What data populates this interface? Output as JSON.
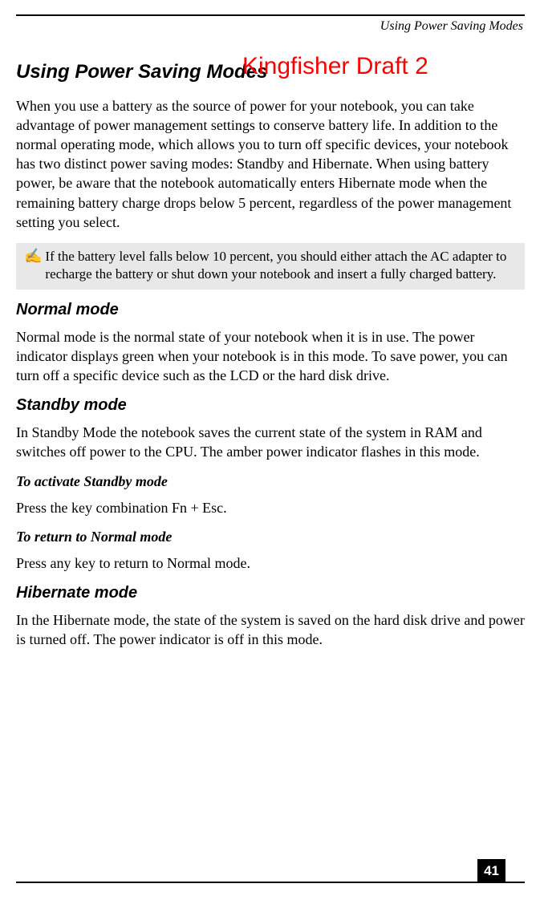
{
  "running_head": "Using Power Saving Modes",
  "page_title": "Using Power Saving Modes",
  "watermark": "Kingfisher Draft 2",
  "intro": "When you use a battery as the source of power for your notebook, you can take advantage of power management settings to conserve battery life. In addition to the normal operating mode, which allows you to turn off specific devices, your notebook has two distinct power saving modes: Standby and Hibernate. When using battery power, be aware that the notebook automatically enters Hibernate mode when the remaining battery charge drops below 5 percent, regardless of the power management setting you select.",
  "note_icon": "✍",
  "note": "If the battery level falls below 10 percent, you should either attach the AC adapter to recharge the battery or shut down your notebook and insert a fully charged battery.",
  "sections": {
    "normal": {
      "heading": "Normal mode",
      "text": "Normal mode is the normal state of your notebook when it is in use. The power indicator displays green when your notebook is in this mode. To save power, you can turn off a specific device such as the LCD or the hard disk drive."
    },
    "standby": {
      "heading": "Standby mode",
      "text": "In Standby Mode the notebook saves the current state of the system in RAM and switches off power to the CPU. The amber power indicator flashes in this mode.",
      "activate_h": "To activate Standby mode",
      "activate_t": "Press the key combination Fn + Esc.",
      "return_h": "To return to Normal mode",
      "return_t": "Press any key to return to Normal mode."
    },
    "hibernate": {
      "heading": "Hibernate mode",
      "text": "In the Hibernate mode, the state of the system is saved on the hard disk drive and power is turned off. The power indicator is off in this mode."
    }
  },
  "page_number": "41",
  "colors": {
    "watermark": "#ff0000",
    "note_bg": "#e8e8e8",
    "rule": "#000000",
    "text": "#000000",
    "pagenum_bg": "#000000",
    "pagenum_fg": "#ffffff"
  },
  "fonts": {
    "body_family": "Times New Roman",
    "heading_family": "Arial",
    "body_size_pt": 13,
    "title_size_pt": 18,
    "h2_size_pt": 15,
    "h3_size_pt": 13
  }
}
